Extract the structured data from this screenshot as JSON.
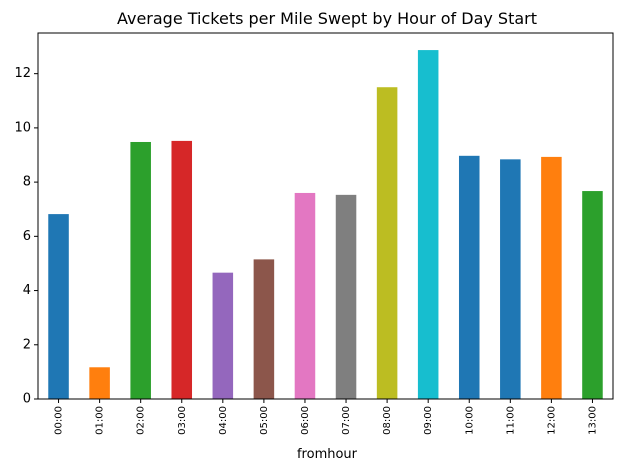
{
  "chart_data": {
    "type": "bar",
    "title": "Average Tickets per Mile Swept by Hour of Day Start",
    "xlabel": "fromhour",
    "ylabel": "",
    "categories": [
      "00:00",
      "01:00",
      "02:00",
      "03:00",
      "04:00",
      "05:00",
      "06:00",
      "07:00",
      "08:00",
      "09:00",
      "10:00",
      "11:00",
      "12:00",
      "13:00"
    ],
    "values": [
      6.82,
      1.17,
      9.48,
      9.52,
      4.66,
      5.15,
      7.6,
      7.53,
      11.5,
      12.87,
      8.97,
      8.84,
      8.93,
      7.67
    ],
    "colors": [
      "#1f77b4",
      "#ff7f0e",
      "#2ca02c",
      "#d62728",
      "#9467bd",
      "#8c564b",
      "#e377c2",
      "#7f7f7f",
      "#bcbd22",
      "#17becf",
      "#1f77b4",
      "#ff7f0e",
      "#2ca02c",
      "#d62728"
    ],
    "bar_colors": [
      "#1f77b4",
      "#ff7f0e",
      "#2ca02c",
      "#d62728",
      "#9467bd",
      "#8c564b",
      "#e377c2",
      "#7f7f7f",
      "#bcbd22",
      "#17becf",
      "#1f77b4",
      "#1f77b4",
      "#ff7f0e",
      "#2ca02c"
    ],
    "yticks": [
      0,
      2,
      4,
      6,
      8,
      10,
      12
    ],
    "ylim": [
      0,
      13.5
    ],
    "grid": false,
    "legend": "none"
  }
}
